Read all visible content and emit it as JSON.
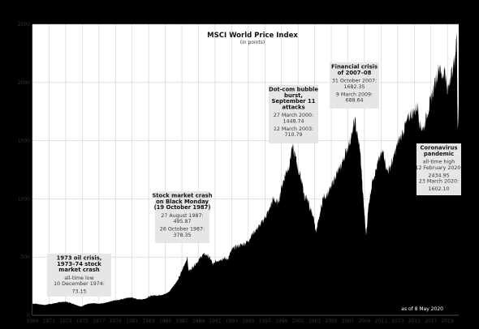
{
  "colors": {
    "background": "#000000",
    "plot_bg": "#ffffff",
    "area_fill": "#000000",
    "grid": "#cfcfcf",
    "annotation_box": "#e6e6e6"
  },
  "chart_data": {
    "type": "area",
    "title": "MSCI World Price Index",
    "subtitle": "(in points)",
    "xlabel": "",
    "ylabel": "",
    "xlim": [
      1969,
      2020.35
    ],
    "ylim": [
      0,
      2500
    ],
    "grid": true,
    "y_ticks": [
      0,
      500,
      1000,
      1500,
      2000,
      2500
    ],
    "x_tick_labels": [
      "1969",
      "1971",
      "1973",
      "1975",
      "1977",
      "1979",
      "1981",
      "1983",
      "1985",
      "1987",
      "1989",
      "1991",
      "1993",
      "1995",
      "1997",
      "1999",
      "2001",
      "2003",
      "2005",
      "2007",
      "2009",
      "2011",
      "2013",
      "2015",
      "2017",
      "2019"
    ],
    "note": "as of 8 May 2020",
    "series": [
      {
        "x": [
          1969.0,
          1969.5,
          1970.0,
          1970.5,
          1971.0,
          1971.5,
          1972.0,
          1972.5,
          1973.0,
          1973.5,
          1974.0,
          1974.4,
          1974.94,
          1975.3,
          1975.7,
          1976.0,
          1976.5,
          1977.0,
          1977.5,
          1978.0,
          1978.5,
          1979.0,
          1979.5,
          1980.0,
          1980.5,
          1981.0,
          1981.5,
          1982.0,
          1982.5,
          1983.0,
          1983.5,
          1984.0,
          1984.5,
          1985.0,
          1985.5,
          1986.0,
          1986.5,
          1987.0,
          1987.65,
          1987.82,
          1988.0,
          1988.5,
          1989.0,
          1989.5,
          1990.0,
          1990.5,
          1990.75,
          1991.0,
          1991.5,
          1992.0,
          1992.5,
          1993.0,
          1993.5,
          1994.0,
          1994.5,
          1995.0,
          1995.5,
          1996.0,
          1996.5,
          1997.0,
          1997.5,
          1998.0,
          1998.6,
          1999.0,
          1999.5,
          2000.0,
          2000.24,
          2000.7,
          2001.0,
          2001.5,
          2001.75,
          2002.0,
          2002.5,
          2002.8,
          2003.19,
          2003.5,
          2004.0,
          2004.5,
          2005.0,
          2005.5,
          2006.0,
          2006.5,
          2007.0,
          2007.5,
          2007.83,
          2008.2,
          2008.5,
          2008.8,
          2009.19,
          2009.5,
          2010.0,
          2010.4,
          2010.8,
          2011.3,
          2011.7,
          2012.0,
          2012.5,
          2013.0,
          2013.5,
          2014.0,
          2014.5,
          2015.0,
          2015.4,
          2015.7,
          2016.1,
          2016.5,
          2017.0,
          2017.5,
          2018.0,
          2018.3,
          2018.7,
          2018.97,
          2019.3,
          2019.6,
          2019.9,
          2020.11,
          2020.22,
          2020.35
        ],
        "y": [
          100,
          98,
          92,
          88,
          96,
          100,
          108,
          114,
          116,
          108,
          95,
          85,
          73.15,
          90,
          98,
          100,
          102,
          98,
          104,
          110,
          122,
          130,
          132,
          142,
          150,
          152,
          140,
          136,
          140,
          158,
          170,
          170,
          175,
          182,
          205,
          255,
          300,
          380,
          495.87,
          378.35,
          390,
          430,
          470,
          520,
          520,
          480,
          430,
          460,
          475,
          490,
          480,
          560,
          590,
          600,
          615,
          640,
          700,
          740,
          780,
          840,
          900,
          1000,
          960,
          1100,
          1220,
          1300,
          1448.74,
          1360,
          1250,
          1150,
          1000,
          1030,
          900,
          860,
          710.79,
          820,
          1010,
          1040,
          1100,
          1200,
          1250,
          1350,
          1450,
          1550,
          1682.35,
          1520,
          1400,
          1050,
          688.64,
          950,
          1180,
          1250,
          1350,
          1410,
          1240,
          1260,
          1350,
          1480,
          1550,
          1650,
          1720,
          1750,
          1800,
          1630,
          1600,
          1720,
          1850,
          2000,
          2150,
          2050,
          2120,
          1900,
          2050,
          2100,
          2200,
          2434.95,
          1602.1,
          1820
        ]
      }
    ],
    "annotations": [
      {
        "title": [
          "1973 oil crisis,",
          "1973–74 stock",
          "market crash"
        ],
        "lines": [
          "all-time low",
          "10 December 1974:",
          "73.15"
        ]
      },
      {
        "title": [
          "Stock market crash",
          "on Black Monday",
          "(19 October 1987)"
        ],
        "lines": [
          "27 August 1987:",
          "495.87",
          "26 October 1987:",
          "378.35"
        ]
      },
      {
        "title": [
          "Dot-com bubble",
          "burst,",
          "September 11",
          "attacks"
        ],
        "lines": [
          "27 March 2000:",
          "1448.74",
          "12 March 2003:",
          "710.79"
        ]
      },
      {
        "title": [
          "Financial crisis",
          "of 2007–08"
        ],
        "lines": [
          "31 October 2007:",
          "1682.35",
          "9 March 2009:",
          "688.64"
        ]
      },
      {
        "title": [
          "Coronavirus",
          "pandemic"
        ],
        "lines": [
          "all-time high",
          "12 February 2020:",
          "2434.95",
          "23 March 2020:",
          "1602.10"
        ]
      }
    ]
  }
}
